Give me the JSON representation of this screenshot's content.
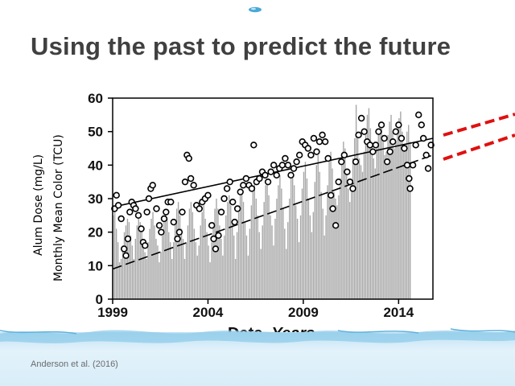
{
  "slide": {
    "title": "Using the past to predict the future",
    "citation": "Anderson et al. (2016)"
  },
  "colors": {
    "title": "#404040",
    "bars": "#a6a6a6",
    "markers": "#000000",
    "projection": "#e01010",
    "water": "#d6ecf8"
  },
  "chart_data": {
    "type": "bar",
    "xlabel_prefix": "Date–",
    "xlabel_italic": "Years",
    "ylabel_lines": [
      "Alum Dose (mg/L)",
      "Monthly Mean Color (TCU)"
    ],
    "xlim": [
      1999,
      2015.8
    ],
    "ylim": [
      0,
      60
    ],
    "x_ticks": [
      1999,
      2004,
      2009,
      2014
    ],
    "y_ticks": [
      0,
      10,
      20,
      30,
      40,
      50,
      60
    ],
    "series": [
      {
        "name": "",
        "kind": "bar",
        "x_start": 1999.0,
        "step": 0.0833,
        "values": [
          25,
          27,
          21,
          17,
          11,
          12,
          16,
          20,
          22,
          24,
          23,
          19,
          16,
          12,
          18,
          22,
          25,
          23,
          21,
          17,
          14,
          12,
          17,
          21,
          24,
          26,
          22,
          18,
          16,
          11,
          14,
          19,
          23,
          26,
          24,
          20,
          17,
          12,
          17,
          23,
          27,
          29,
          25,
          21,
          18,
          12,
          17,
          22,
          27,
          29,
          26,
          21,
          17,
          13,
          16,
          22,
          26,
          28,
          24,
          20,
          16,
          11,
          17,
          23,
          27,
          30,
          27,
          22,
          18,
          13,
          19,
          25,
          29,
          31,
          28,
          23,
          19,
          12,
          20,
          26,
          31,
          33,
          29,
          23,
          19,
          13,
          21,
          28,
          32,
          35,
          30,
          25,
          20,
          15,
          22,
          29,
          34,
          36,
          31,
          25,
          22,
          16,
          24,
          30,
          34,
          37,
          33,
          27,
          21,
          15,
          23,
          30,
          36,
          38,
          34,
          28,
          24,
          17,
          25,
          33,
          38,
          41,
          36,
          30,
          25,
          20,
          26,
          35,
          40,
          43,
          38,
          32,
          27,
          19,
          25,
          34,
          41,
          44,
          39,
          32,
          30,
          28,
          31,
          36,
          43,
          47,
          45,
          38,
          33,
          29,
          35,
          42,
          48,
          58,
          50,
          42,
          40,
          38,
          44,
          49,
          55,
          57,
          51,
          46,
          42,
          39,
          45,
          50,
          52,
          51,
          47,
          43,
          44,
          49,
          53,
          55,
          50,
          45,
          47,
          51,
          54,
          56,
          50,
          45,
          46,
          50,
          52,
          47
        ]
      },
      {
        "name": "",
        "kind": "scatter",
        "points": [
          [
            1999.1,
            27
          ],
          [
            1999.2,
            31
          ],
          [
            1999.3,
            28
          ],
          [
            1999.45,
            24
          ],
          [
            1999.6,
            15
          ],
          [
            1999.7,
            13
          ],
          [
            1999.8,
            18
          ],
          [
            1999.9,
            26
          ],
          [
            2000.0,
            29
          ],
          [
            2000.1,
            28
          ],
          [
            2000.2,
            27
          ],
          [
            2000.35,
            25
          ],
          [
            2000.5,
            21
          ],
          [
            2000.6,
            17
          ],
          [
            2000.7,
            16
          ],
          [
            2000.8,
            26
          ],
          [
            2000.9,
            30
          ],
          [
            2001.0,
            33
          ],
          [
            2001.1,
            34
          ],
          [
            2001.3,
            27
          ],
          [
            2001.45,
            22
          ],
          [
            2001.55,
            20
          ],
          [
            2001.7,
            24
          ],
          [
            2001.8,
            26
          ],
          [
            2001.9,
            29
          ],
          [
            2002.05,
            29
          ],
          [
            2002.2,
            23
          ],
          [
            2002.4,
            18
          ],
          [
            2002.5,
            20
          ],
          [
            2002.65,
            26
          ],
          [
            2002.8,
            35
          ],
          [
            2002.9,
            43
          ],
          [
            2003.0,
            42
          ],
          [
            2003.1,
            36
          ],
          [
            2003.25,
            34
          ],
          [
            2003.4,
            28
          ],
          [
            2003.55,
            27
          ],
          [
            2003.7,
            29
          ],
          [
            2003.85,
            30
          ],
          [
            2004.0,
            31
          ],
          [
            2004.2,
            22
          ],
          [
            2004.3,
            18
          ],
          [
            2004.4,
            15
          ],
          [
            2004.55,
            19
          ],
          [
            2004.7,
            26
          ],
          [
            2004.85,
            30
          ],
          [
            2005.0,
            33
          ],
          [
            2005.15,
            35
          ],
          [
            2005.3,
            29
          ],
          [
            2005.4,
            23
          ],
          [
            2005.55,
            27
          ],
          [
            2005.7,
            32
          ],
          [
            2005.85,
            34
          ],
          [
            2006.0,
            36
          ],
          [
            2006.15,
            34
          ],
          [
            2006.3,
            33
          ],
          [
            2006.4,
            46
          ],
          [
            2006.55,
            35
          ],
          [
            2006.7,
            36
          ],
          [
            2006.85,
            38
          ],
          [
            2007.0,
            37
          ],
          [
            2007.15,
            35
          ],
          [
            2007.3,
            38
          ],
          [
            2007.45,
            40
          ],
          [
            2007.6,
            37
          ],
          [
            2007.75,
            39
          ],
          [
            2007.9,
            40
          ],
          [
            2008.05,
            42
          ],
          [
            2008.2,
            40
          ],
          [
            2008.35,
            37
          ],
          [
            2008.5,
            39
          ],
          [
            2008.65,
            41
          ],
          [
            2008.8,
            43
          ],
          [
            2008.95,
            47
          ],
          [
            2009.1,
            46
          ],
          [
            2009.25,
            45
          ],
          [
            2009.4,
            43
          ],
          [
            2009.55,
            48
          ],
          [
            2009.7,
            44
          ],
          [
            2009.85,
            47
          ],
          [
            2010.0,
            49
          ],
          [
            2010.15,
            47
          ],
          [
            2010.3,
            42
          ],
          [
            2010.45,
            31
          ],
          [
            2010.55,
            27
          ],
          [
            2010.7,
            22
          ],
          [
            2010.85,
            35
          ],
          [
            2011.0,
            41
          ],
          [
            2011.15,
            43
          ],
          [
            2011.3,
            38
          ],
          [
            2011.45,
            35
          ],
          [
            2011.6,
            33
          ],
          [
            2011.75,
            41
          ],
          [
            2011.9,
            49
          ],
          [
            2012.05,
            54
          ],
          [
            2012.2,
            50
          ],
          [
            2012.35,
            47
          ],
          [
            2012.5,
            46
          ],
          [
            2012.65,
            44
          ],
          [
            2012.8,
            46
          ],
          [
            2012.95,
            50
          ],
          [
            2013.1,
            52
          ],
          [
            2013.25,
            48
          ],
          [
            2013.4,
            41
          ],
          [
            2013.55,
            44
          ],
          [
            2013.7,
            47
          ],
          [
            2013.85,
            50
          ],
          [
            2014.0,
            52
          ],
          [
            2014.15,
            48
          ],
          [
            2014.3,
            45
          ],
          [
            2014.45,
            40
          ],
          [
            2014.55,
            36
          ],
          [
            2014.6,
            33
          ],
          [
            2014.75,
            40
          ],
          [
            2014.9,
            46
          ],
          [
            2015.05,
            55
          ],
          [
            2015.2,
            52
          ],
          [
            2015.3,
            48
          ],
          [
            2015.45,
            43
          ],
          [
            2015.55,
            39
          ],
          [
            2015.7,
            46
          ]
        ]
      },
      {
        "name": "",
        "kind": "trend-solid",
        "points": [
          [
            1999.0,
            27.5
          ],
          [
            2015.8,
            48
          ]
        ]
      },
      {
        "name": "",
        "kind": "trend-dashed",
        "points": [
          [
            1999.0,
            9
          ],
          [
            2015.8,
            43
          ]
        ]
      }
    ]
  }
}
